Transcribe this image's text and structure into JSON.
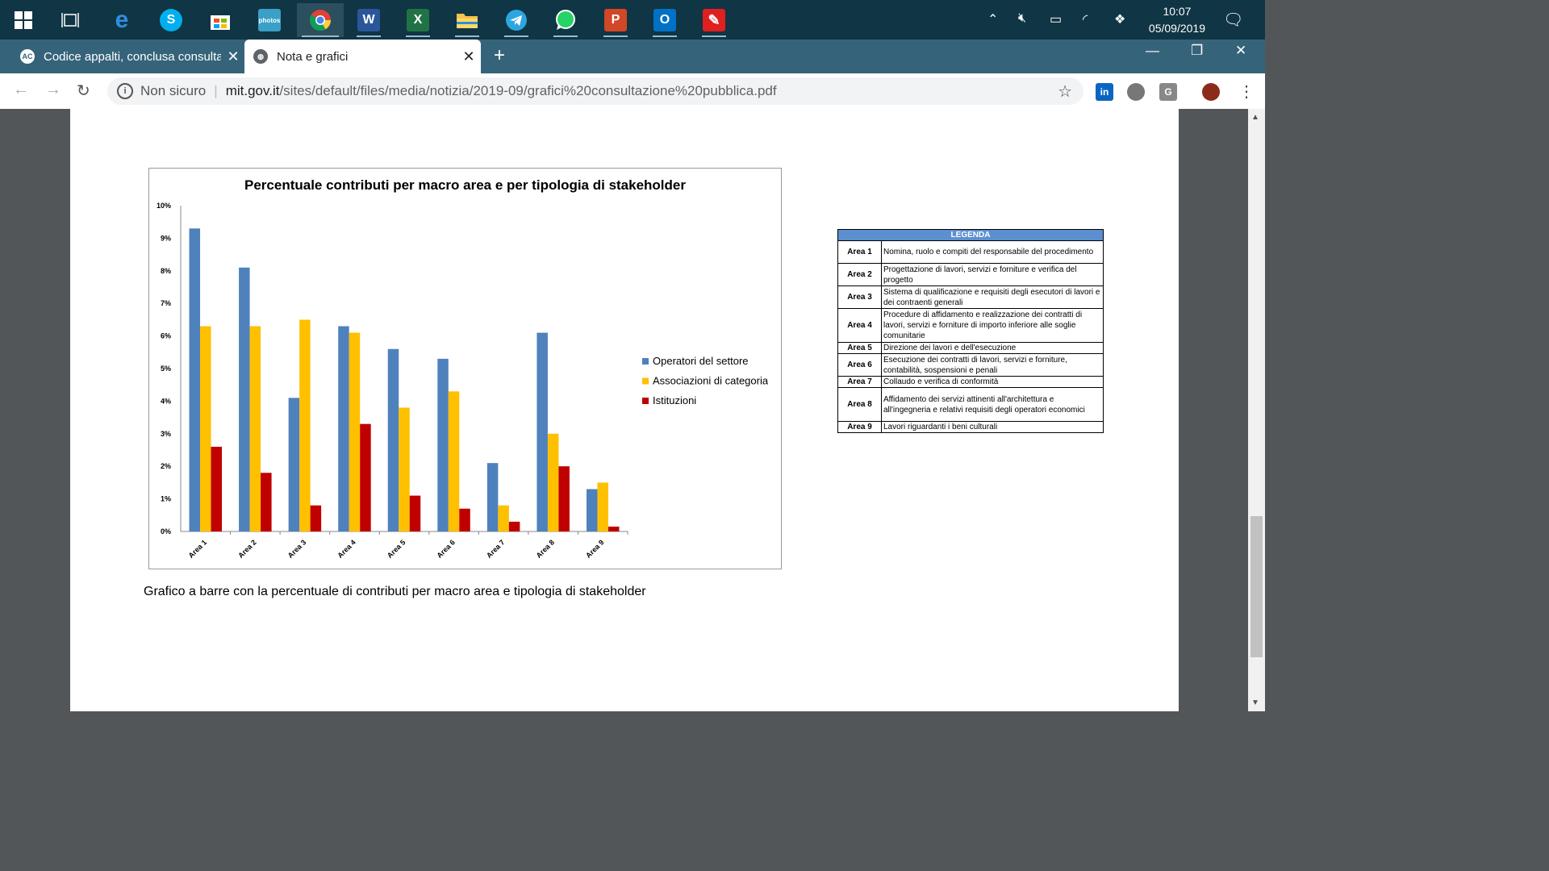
{
  "taskbar": {
    "icons": [
      "windows-start",
      "task-view",
      "edge",
      "skype",
      "store",
      "photos",
      "chrome",
      "word",
      "excel",
      "file-explorer",
      "telegram",
      "whatsapp",
      "powerpoint",
      "outlook",
      "acrobat"
    ],
    "time": "10:07",
    "date": "05/09/2019"
  },
  "browser": {
    "tabs": [
      {
        "label": "Codice appalti, conclusa consulta",
        "favicon": "AC"
      },
      {
        "label": "Nota e grafici",
        "favicon": "globe"
      }
    ],
    "address": {
      "security": "Non sicuro",
      "host": "mit.gov.it",
      "path": "/sites/default/files/media/notizia/2019-09/grafici%20consultazione%20pubblica.pdf"
    }
  },
  "chart_data": {
    "type": "bar",
    "title": "Percentuale contributi per macro area e per tipologia di stakeholder",
    "categories": [
      "Area 1",
      "Area 2",
      "Area 3",
      "Area 4",
      "Area 5",
      "Area 6",
      "Area 7",
      "Area 8",
      "Area 9"
    ],
    "series": [
      {
        "name": "Operatori del settore",
        "color": "#4f81bd",
        "values": [
          9.3,
          8.1,
          4.1,
          6.3,
          5.6,
          5.3,
          2.1,
          6.1,
          1.3
        ]
      },
      {
        "name": "Associazioni di categoria",
        "color": "#ffc000",
        "values": [
          6.3,
          6.3,
          6.5,
          6.1,
          3.8,
          4.3,
          0.8,
          3.0,
          1.5
        ]
      },
      {
        "name": "Istituzioni",
        "color": "#c00000",
        "values": [
          2.6,
          1.8,
          0.8,
          3.3,
          1.1,
          0.7,
          0.3,
          2.0,
          0.15
        ]
      }
    ],
    "yticks": [
      "0%",
      "1%",
      "2%",
      "3%",
      "4%",
      "5%",
      "6%",
      "7%",
      "8%",
      "9%",
      "10%"
    ],
    "ylim": [
      0,
      10
    ],
    "legend_position": "right"
  },
  "caption": "Grafico a barre con la percentuale di contributi per macro area e tipologia di stakeholder",
  "legenda": {
    "header": "LEGENDA",
    "rows": [
      {
        "area": "Area 1",
        "desc": "Nomina, ruolo e compiti del responsabile del procedimento"
      },
      {
        "area": "Area 2",
        "desc": "Progettazione di lavori, servizi e forniture e verifica del progetto"
      },
      {
        "area": "Area 3",
        "desc": "Sistema di qualificazione e requisiti degli esecutori di lavori e dei contraenti generali"
      },
      {
        "area": "Area 4",
        "desc": "Procedure di affidamento e realizzazione dei contratti di lavori, servizi e forniture di importo inferiore alle soglie comunitarie"
      },
      {
        "area": "Area 5",
        "desc": "Direzione dei lavori e dell'esecuzione"
      },
      {
        "area": "Area 6",
        "desc": "Esecuzione dei contratti di lavori, servizi e forniture, contabilità, sospensioni e penali"
      },
      {
        "area": "Area 7",
        "desc": "Collaudo e verifica di conformità"
      },
      {
        "area": "Area 8",
        "desc": "Affidamento dei servizi attinenti all'architettura e all'ingegneria e relativi requisiti degli operatori economici"
      },
      {
        "area": "Area 9",
        "desc": "Lavori riguardanti i beni culturali"
      }
    ]
  }
}
